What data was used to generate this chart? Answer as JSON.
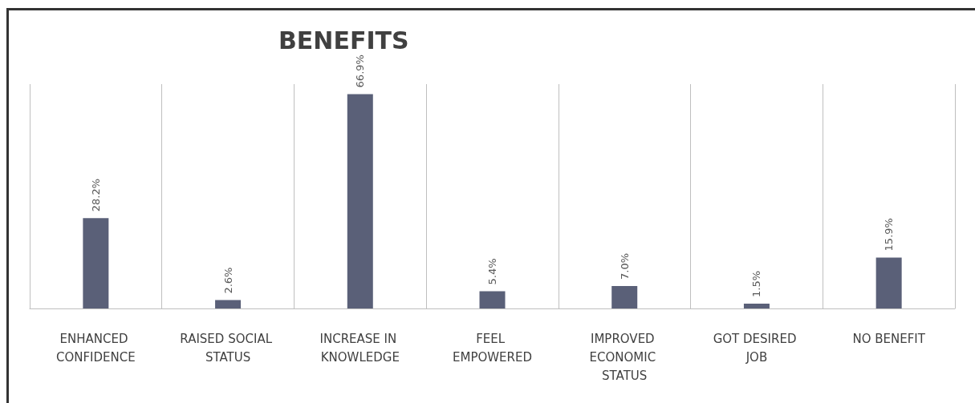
{
  "chart_data": {
    "type": "bar",
    "title": "BENEFITS",
    "categories": [
      "ENHANCED CONFIDENCE",
      "RAISED SOCIAL STATUS",
      "INCREASE IN KNOWLEDGE",
      "FEEL EMPOWERED",
      "IMPROVED ECONOMIC STATUS",
      "GOT DESIRED JOB",
      "NO BENEFIT"
    ],
    "values": [
      28.2,
      2.6,
      66.9,
      5.4,
      7.0,
      1.5,
      15.9
    ],
    "value_labels": [
      "28.2%",
      "2.6%",
      "66.9%",
      "5.4%",
      "7.0%",
      "1.5%",
      "15.9%"
    ],
    "color": "#5a6078",
    "grid": "x"
  }
}
